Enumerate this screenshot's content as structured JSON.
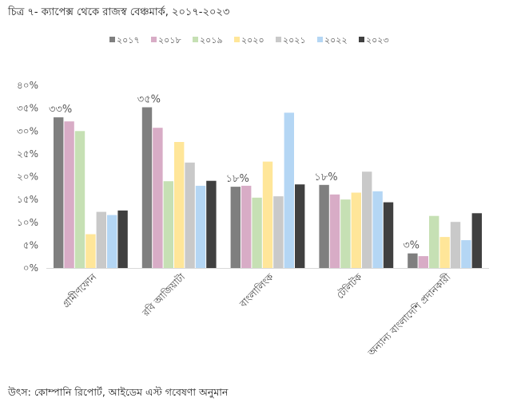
{
  "title": "চিত্র ৭- ক্যাপেক্স থেকে রাজস্ব বেঞ্চমার্ক, ২০১৭-২০২৩",
  "source": "উৎস: কোম্পানি রিপোর্ট, আইডেম এস্ট গবেষণা অনুমান",
  "colors": [
    "#7f7f7f",
    "#d8acc6",
    "#c6e0b4",
    "#ffe699",
    "#c9c9c9",
    "#b4d6f4",
    "#404040"
  ],
  "chart_data": {
    "type": "bar",
    "title": "",
    "xlabel": "",
    "ylabel": "",
    "ylim": [
      0,
      40
    ],
    "y_ticks": [
      "০%",
      "৫%",
      "১০%",
      "১৫%",
      "২০%",
      "২৫%",
      "৩০%",
      "৩৫%",
      "৪০%"
    ],
    "legend_position": "top",
    "grid": false,
    "categories": [
      "গ্রামীণফোন",
      "রবি আজিয়াটা",
      "বাংলালিংক",
      "টেলিটক",
      "অন্যান্য বাংলাদেশি প্রদানকারী"
    ],
    "series": [
      {
        "name": "২০১৭",
        "values": [
          33,
          35.2,
          17.8,
          18.2,
          3.2
        ]
      },
      {
        "name": "২০১৮",
        "values": [
          32.1,
          30.7,
          18,
          16.1,
          2.6
        ]
      },
      {
        "name": "২০১৯",
        "values": [
          30,
          19,
          15.4,
          15,
          11.4
        ]
      },
      {
        "name": "২০২০",
        "values": [
          7.4,
          27.6,
          23.3,
          16.5,
          6.8
        ]
      },
      {
        "name": "২০২১",
        "values": [
          12.3,
          23.1,
          15.7,
          21.1,
          10.1
        ]
      },
      {
        "name": "২০২২",
        "values": [
          11.6,
          18,
          34,
          16.8,
          6.1
        ]
      },
      {
        "name": "২০২৩",
        "values": [
          12.6,
          19.1,
          18.3,
          14.4,
          12
        ]
      }
    ],
    "data_labels": [
      "৩৩%",
      "৩৫%",
      "১৮%",
      "১৮%",
      "৩%"
    ]
  }
}
